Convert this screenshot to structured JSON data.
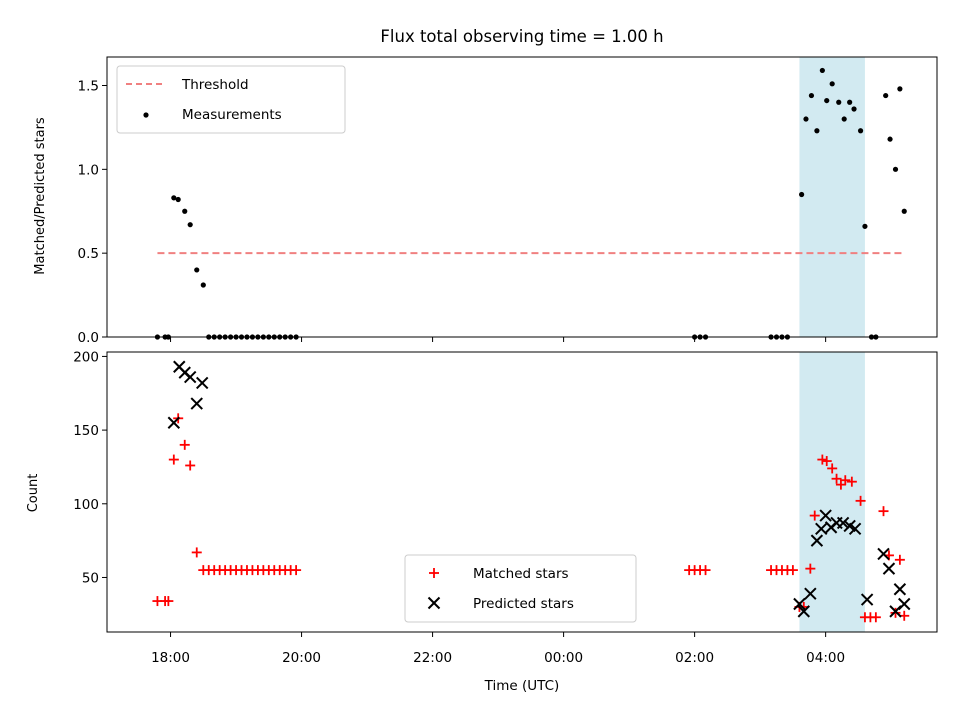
{
  "title": "Flux total observing time = 1.00 h",
  "colors": {
    "threshold": "#f08080",
    "measurement": "#000000",
    "matched": "#ff0000",
    "predicted": "#000000",
    "highlight": "#add8e6"
  },
  "chart_data": [
    {
      "type": "scatter",
      "panel": "top",
      "ylabel": "Matched/Predicted stars",
      "xlabel": "",
      "ylim": [
        0,
        1.67
      ],
      "yticks": [
        "0.0",
        "0.5",
        "1.0",
        "1.5"
      ],
      "legend_position": "upper-left",
      "highlight_span": [
        "03:36",
        "04:36"
      ],
      "series": [
        {
          "name": "Threshold",
          "style": "dashed-line",
          "points": [
            [
              "17:48",
              0.5
            ],
            [
              "05:12",
              0.5
            ]
          ]
        },
        {
          "name": "Measurements",
          "style": "dot",
          "points": [
            [
              "17:48",
              0
            ],
            [
              "17:55",
              0
            ],
            [
              "17:58",
              0
            ],
            [
              "18:03",
              0.83
            ],
            [
              "18:07",
              0.82
            ],
            [
              "18:13",
              0.75
            ],
            [
              "18:18",
              0.67
            ],
            [
              "18:24",
              0.4
            ],
            [
              "18:30",
              0.31
            ],
            [
              "18:35",
              0
            ],
            [
              "18:40",
              0
            ],
            [
              "18:45",
              0
            ],
            [
              "18:50",
              0
            ],
            [
              "18:55",
              0
            ],
            [
              "19:00",
              0
            ],
            [
              "19:05",
              0
            ],
            [
              "19:10",
              0
            ],
            [
              "19:15",
              0
            ],
            [
              "19:20",
              0
            ],
            [
              "19:25",
              0
            ],
            [
              "19:30",
              0
            ],
            [
              "19:35",
              0
            ],
            [
              "19:40",
              0
            ],
            [
              "19:45",
              0
            ],
            [
              "19:50",
              0
            ],
            [
              "19:55",
              0
            ],
            [
              "02:00",
              0
            ],
            [
              "02:05",
              0
            ],
            [
              "02:10",
              0
            ],
            [
              "03:10",
              0
            ],
            [
              "03:15",
              0
            ],
            [
              "03:20",
              0
            ],
            [
              "03:25",
              0
            ],
            [
              "03:38",
              0.85
            ],
            [
              "03:42",
              1.3
            ],
            [
              "03:47",
              1.44
            ],
            [
              "03:52",
              1.23
            ],
            [
              "03:57",
              1.59
            ],
            [
              "04:01",
              1.41
            ],
            [
              "04:06",
              1.51
            ],
            [
              "04:12",
              1.4
            ],
            [
              "04:17",
              1.3
            ],
            [
              "04:22",
              1.4
            ],
            [
              "04:26",
              1.36
            ],
            [
              "04:32",
              1.23
            ],
            [
              "04:36",
              0.66
            ],
            [
              "04:42",
              0
            ],
            [
              "04:46",
              0
            ],
            [
              "04:55",
              1.44
            ],
            [
              "04:59",
              1.18
            ],
            [
              "05:04",
              1.0
            ],
            [
              "05:08",
              1.48
            ],
            [
              "05:12",
              0.75
            ]
          ]
        }
      ]
    },
    {
      "type": "scatter",
      "panel": "bottom",
      "ylabel": "Count",
      "xlabel": "Time (UTC)",
      "ylim": [
        13,
        203
      ],
      "yticks": [
        "50",
        "100",
        "150",
        "200"
      ],
      "xticks": [
        "18:00",
        "20:00",
        "22:00",
        "00:00",
        "02:00",
        "04:00"
      ],
      "legend_position": "lower-center",
      "highlight_span": [
        "03:36",
        "04:36"
      ],
      "series": [
        {
          "name": "Matched stars",
          "style": "plus",
          "points": [
            [
              "17:48",
              34
            ],
            [
              "17:55",
              34
            ],
            [
              "17:58",
              34
            ],
            [
              "18:03",
              130
            ],
            [
              "18:07",
              158
            ],
            [
              "18:13",
              140
            ],
            [
              "18:18",
              126
            ],
            [
              "18:24",
              67
            ],
            [
              "18:30",
              55
            ],
            [
              "18:35",
              55
            ],
            [
              "18:40",
              55
            ],
            [
              "18:45",
              55
            ],
            [
              "18:50",
              55
            ],
            [
              "18:55",
              55
            ],
            [
              "19:00",
              55
            ],
            [
              "19:05",
              55
            ],
            [
              "19:10",
              55
            ],
            [
              "19:15",
              55
            ],
            [
              "19:20",
              55
            ],
            [
              "19:25",
              55
            ],
            [
              "19:30",
              55
            ],
            [
              "19:35",
              55
            ],
            [
              "19:40",
              55
            ],
            [
              "19:45",
              55
            ],
            [
              "19:50",
              55
            ],
            [
              "19:55",
              55
            ],
            [
              "01:55",
              55
            ],
            [
              "02:00",
              55
            ],
            [
              "02:05",
              55
            ],
            [
              "02:10",
              55
            ],
            [
              "03:10",
              55
            ],
            [
              "03:15",
              55
            ],
            [
              "03:20",
              55
            ],
            [
              "03:25",
              55
            ],
            [
              "03:30",
              55
            ],
            [
              "03:36",
              30
            ],
            [
              "03:40",
              30
            ],
            [
              "03:46",
              56
            ],
            [
              "03:50",
              92
            ],
            [
              "03:57",
              130
            ],
            [
              "04:01",
              129
            ],
            [
              "04:06",
              124
            ],
            [
              "04:10",
              117
            ],
            [
              "04:14",
              113
            ],
            [
              "04:18",
              116
            ],
            [
              "04:24",
              115
            ],
            [
              "04:32",
              102
            ],
            [
              "04:36",
              23
            ],
            [
              "04:41",
              23
            ],
            [
              "04:46",
              23
            ],
            [
              "04:53",
              95
            ],
            [
              "04:58",
              65
            ],
            [
              "05:04",
              26
            ],
            [
              "05:08",
              62
            ],
            [
              "05:12",
              24
            ]
          ]
        },
        {
          "name": "Predicted stars",
          "style": "x",
          "points": [
            [
              "18:03",
              155
            ],
            [
              "18:08",
              193
            ],
            [
              "18:13",
              189
            ],
            [
              "18:18",
              186
            ],
            [
              "18:24",
              168
            ],
            [
              "18:29",
              182
            ],
            [
              "03:36",
              32
            ],
            [
              "03:40",
              27
            ],
            [
              "03:46",
              39
            ],
            [
              "03:52",
              75
            ],
            [
              "03:56",
              83
            ],
            [
              "04:00",
              92
            ],
            [
              "04:05",
              84
            ],
            [
              "04:10",
              87
            ],
            [
              "04:16",
              87
            ],
            [
              "04:22",
              85
            ],
            [
              "04:27",
              83
            ],
            [
              "04:38",
              35
            ],
            [
              "04:53",
              66
            ],
            [
              "04:58",
              56
            ],
            [
              "05:04",
              27
            ],
            [
              "05:08",
              42
            ],
            [
              "05:12",
              32
            ]
          ]
        }
      ]
    }
  ]
}
